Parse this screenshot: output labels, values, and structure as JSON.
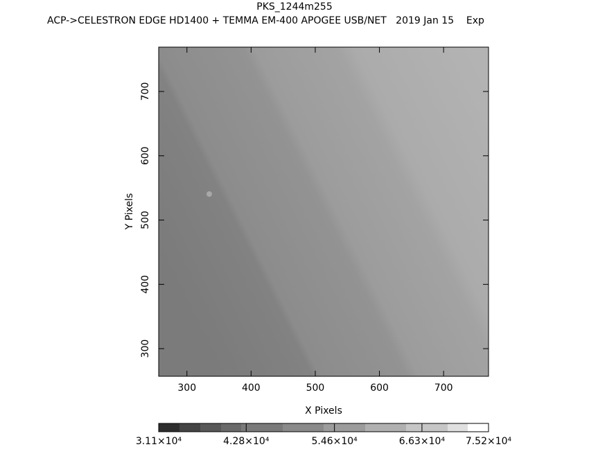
{
  "chart_data": {
    "type": "image",
    "title": "PKS_1244m255",
    "subtitle": "ACP->CELESTRON EDGE HD1400 + TEMMA EM-400 APOGEE USB/NET   2019 Jan 15    Exp",
    "x_label": "X Pixels",
    "y_label": "Y Pixels",
    "xlim": [
      256,
      770
    ],
    "ylim": [
      257,
      769
    ],
    "xticks": [
      300,
      400,
      500,
      600,
      700
    ],
    "yticks": [
      300,
      400,
      500,
      600,
      700
    ],
    "colorbar": {
      "clim": [
        31100,
        75200
      ],
      "ticks": [
        {
          "value": 31100,
          "label": "3.11×10⁴"
        },
        {
          "value": 42800,
          "label": "4.28×10⁴"
        },
        {
          "value": 54600,
          "label": "5.46×10⁴"
        },
        {
          "value": 66300,
          "label": "6.63×10⁴"
        },
        {
          "value": 75200,
          "label": "7.52×10⁴"
        }
      ]
    }
  }
}
